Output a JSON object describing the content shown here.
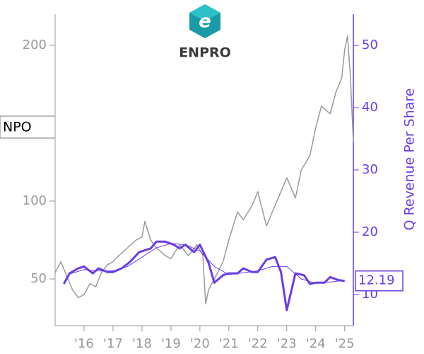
{
  "chart_data": {
    "type": "line",
    "logo_text": "ENPRO",
    "ticker": "NPO",
    "y2label": "Q Revenue Per Share",
    "xlim": [
      2015.0,
      2025.3
    ],
    "xticks": [
      {
        "value": 2016,
        "label": "'16"
      },
      {
        "value": 2017,
        "label": "'17"
      },
      {
        "value": 2018,
        "label": "'18"
      },
      {
        "value": 2019,
        "label": "'19"
      },
      {
        "value": 2020,
        "label": "'20"
      },
      {
        "value": 2021,
        "label": "'21"
      },
      {
        "value": 2022,
        "label": "'22"
      },
      {
        "value": 2023,
        "label": "'23"
      },
      {
        "value": 2024,
        "label": "'24"
      },
      {
        "value": 2025,
        "label": "'25"
      }
    ],
    "ylim": [
      20,
      220
    ],
    "yticks": [
      50,
      100,
      200
    ],
    "y2lim": [
      5,
      55
    ],
    "y2ticks": [
      10,
      20,
      30,
      40,
      50
    ],
    "series": [
      {
        "color": "#9a9a9a",
        "width": 1.5,
        "x": [
          2015.0,
          2015.2,
          2015.4,
          2015.6,
          2015.8,
          2016.0,
          2016.2,
          2016.4,
          2016.6,
          2016.8,
          2017.0,
          2017.2,
          2017.5,
          2017.8,
          2018.0,
          2018.1,
          2018.3,
          2018.5,
          2018.8,
          2019.0,
          2019.3,
          2019.6,
          2019.9,
          2020.1,
          2020.2,
          2020.3,
          2020.5,
          2020.8,
          2021.0,
          2021.3,
          2021.5,
          2021.8,
          2022.0,
          2022.3,
          2022.5,
          2022.8,
          2023.0,
          2023.3,
          2023.5,
          2023.8,
          2024.0,
          2024.2,
          2024.5,
          2024.7,
          2024.9,
          2025.0,
          2025.1,
          2025.2,
          2025.3
        ],
        "values": [
          54,
          61,
          52,
          43,
          38,
          40,
          47,
          45,
          54,
          59,
          61,
          65,
          70,
          75,
          77,
          87,
          75,
          70,
          65,
          63,
          72,
          65,
          72,
          65,
          34,
          43,
          50,
          61,
          75,
          93,
          88,
          97,
          106,
          84,
          93,
          106,
          115,
          102,
          120,
          129,
          147,
          161,
          156,
          170,
          179,
          197,
          206,
          179,
          138
        ]
      },
      {
        "color": "#6a3de8",
        "width": 3,
        "axis": "y2",
        "x": [
          2015.3,
          2015.5,
          2015.8,
          2016.0,
          2016.3,
          2016.5,
          2016.8,
          2017.0,
          2017.3,
          2017.6,
          2017.9,
          2018.3,
          2018.5,
          2018.8,
          2019.1,
          2019.3,
          2019.5,
          2019.8,
          2020.0,
          2020.3,
          2020.5,
          2020.8,
          2021.0,
          2021.3,
          2021.5,
          2021.8,
          2022.0,
          2022.3,
          2022.6,
          2022.8,
          2023.0,
          2023.3,
          2023.6,
          2023.8,
          2024.0,
          2024.3,
          2024.5,
          2024.8,
          2025.0
        ],
        "values": [
          11.7,
          13.4,
          14.2,
          14.5,
          13.4,
          14.2,
          13.6,
          13.6,
          14.2,
          15.3,
          16.8,
          17.4,
          18.5,
          18.5,
          18.0,
          17.4,
          18.0,
          16.8,
          18.0,
          15.1,
          11.9,
          13.1,
          13.4,
          13.4,
          14.2,
          13.6,
          13.6,
          15.6,
          16.0,
          13.6,
          7.5,
          13.4,
          13.1,
          11.7,
          11.9,
          11.9,
          12.8,
          12.3,
          12.19
        ]
      },
      {
        "color": "#6a3de8",
        "width": 1,
        "axis": "y2",
        "x": [
          2015.5,
          2016.0,
          2016.5,
          2017.0,
          2017.5,
          2018.0,
          2018.5,
          2019.0,
          2019.5,
          2020.0,
          2020.5,
          2021.0,
          2021.5,
          2022.0,
          2022.5,
          2023.0,
          2023.5,
          2024.0,
          2024.5,
          2025.0
        ],
        "values": [
          13.3,
          14.0,
          13.8,
          13.8,
          14.5,
          16.0,
          17.5,
          18.2,
          18.0,
          17.0,
          14.5,
          13.2,
          13.5,
          13.8,
          14.5,
          14.5,
          12.5,
          11.8,
          12.0,
          12.3
        ]
      }
    ]
  }
}
